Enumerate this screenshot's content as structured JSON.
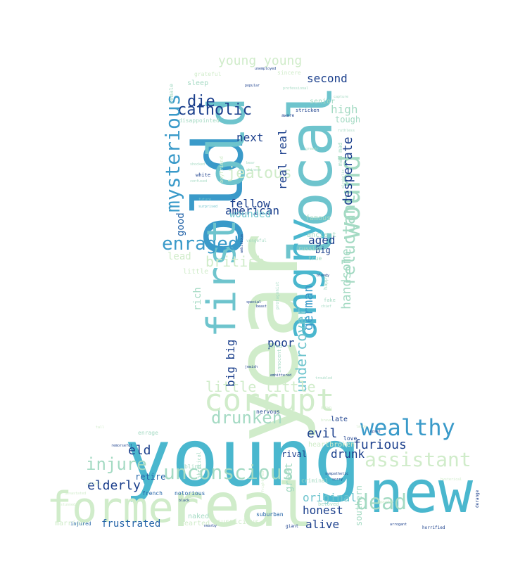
{
  "palette": {
    "background": "#ffffff",
    "pale_green": "#d0ecca",
    "light_aqua": "#a4dac3",
    "teal": "#6ec4cd",
    "medium_blue": "#3a9ac9",
    "deep_blue": "#2464a8",
    "navy": "#1b3f8c"
  },
  "wordcloud": {
    "shape": "head-and-shoulders silhouette",
    "words": [
      {
        "text": "young",
        "weight": 100,
        "color": "#4ab7ce",
        "vertical": false
      },
      {
        "text": "year",
        "weight": 96,
        "color": "#d0ecca",
        "vertical": true
      },
      {
        "text": "old",
        "weight": 90,
        "color": "#3a9ac9",
        "vertical": true
      },
      {
        "text": "local",
        "weight": 82,
        "color": "#6ec4cd",
        "vertical": true
      },
      {
        "text": "new",
        "weight": 80,
        "color": "#4ab7ce",
        "vertical": false
      },
      {
        "text": "real",
        "weight": 76,
        "color": "#d0ecca",
        "vertical": false
      },
      {
        "text": "old",
        "weight": 70,
        "color": "#6ec4cd",
        "vertical": true
      },
      {
        "text": "former",
        "weight": 62,
        "color": "#d0ecca",
        "vertical": false
      },
      {
        "text": "angry",
        "weight": 58,
        "color": "#4ab7ce",
        "vertical": true
      },
      {
        "text": "first",
        "weight": 52,
        "color": "#6ec4cd",
        "vertical": true
      },
      {
        "text": "corrupt",
        "weight": 48,
        "color": "#d0ecca",
        "vertical": false
      },
      {
        "text": "wound",
        "weight": 40,
        "color": "#a4dac3",
        "vertical": true
      },
      {
        "text": "wealthy",
        "weight": 38,
        "color": "#3a9ac9",
        "vertical": false
      },
      {
        "text": "unconscious",
        "weight": 34,
        "color": "#a4dac3",
        "vertical": false
      },
      {
        "text": "dead",
        "weight": 34,
        "color": "#a4dac3",
        "vertical": false
      },
      {
        "text": "assistant",
        "weight": 34,
        "color": "#d0ecca",
        "vertical": false
      },
      {
        "text": "catholic",
        "weight": 32,
        "color": "#1b3f8c",
        "vertical": false
      },
      {
        "text": "mysterious",
        "weight": 32,
        "color": "#3a9ac9",
        "vertical": true
      },
      {
        "text": "enraged",
        "weight": 32,
        "color": "#3a9ac9",
        "vertical": false
      },
      {
        "text": "drunken",
        "weight": 30,
        "color": "#a4dac3",
        "vertical": false
      },
      {
        "text": "injure",
        "weight": 30,
        "color": "#a4dac3",
        "vertical": false
      },
      {
        "text": "die",
        "weight": 30,
        "color": "#1b3f8c",
        "vertical": false
      },
      {
        "text": "jealous",
        "weight": 28,
        "color": "#d0ecca",
        "vertical": false
      },
      {
        "text": "reluctant",
        "weight": 28,
        "color": "#a4dac3",
        "vertical": true
      },
      {
        "text": "undercover",
        "weight": 26,
        "color": "#6ec4cd",
        "vertical": true
      },
      {
        "text": "german",
        "weight": 24,
        "color": "#3a9ac9",
        "vertical": true
      },
      {
        "text": "desperate",
        "weight": 24,
        "color": "#1b3f8c",
        "vertical": true
      },
      {
        "text": "handsome",
        "weight": 24,
        "color": "#a4dac3",
        "vertical": true
      },
      {
        "text": "british",
        "weight": 24,
        "color": "#d0ecca",
        "vertical": false
      },
      {
        "text": "furious",
        "weight": 24,
        "color": "#1b3f8c",
        "vertical": false
      },
      {
        "text": "little little",
        "weight": 22,
        "color": "#d0ecca",
        "vertical": false
      },
      {
        "text": "young young",
        "weight": 20,
        "color": "#d0ecca",
        "vertical": false
      },
      {
        "text": "elderly",
        "weight": 22,
        "color": "#1b3f8c",
        "vertical": false
      },
      {
        "text": "evil",
        "weight": 22,
        "color": "#1b3f8c",
        "vertical": false
      },
      {
        "text": "eld",
        "weight": 22,
        "color": "#1b3f8c",
        "vertical": false
      },
      {
        "text": "second",
        "weight": 22,
        "color": "#1b3f8c",
        "vertical": false
      },
      {
        "text": "fellow",
        "weight": 20,
        "color": "#1b3f8c",
        "vertical": false
      },
      {
        "text": "american",
        "weight": 20,
        "color": "#1b3f8c",
        "vertical": false
      },
      {
        "text": "aged",
        "weight": 20,
        "color": "#1b3f8c",
        "vertical": false
      },
      {
        "text": "poor",
        "weight": 20,
        "color": "#1b3f8c",
        "vertical": false
      },
      {
        "text": "next",
        "weight": 20,
        "color": "#1b3f8c",
        "vertical": false
      },
      {
        "text": "real real",
        "weight": 20,
        "color": "#1b3f8c",
        "vertical": true
      },
      {
        "text": "big big",
        "weight": 20,
        "color": "#1b3f8c",
        "vertical": true
      },
      {
        "text": "original",
        "weight": 20,
        "color": "#6ec4cd",
        "vertical": false
      },
      {
        "text": "honest",
        "weight": 20,
        "color": "#1b3f8c",
        "vertical": false
      },
      {
        "text": "alive",
        "weight": 20,
        "color": "#1b3f8c",
        "vertical": false
      },
      {
        "text": "drunk",
        "weight": 20,
        "color": "#1b3f8c",
        "vertical": false
      },
      {
        "text": "frustrated",
        "weight": 18,
        "color": "#2464a8",
        "vertical": false
      },
      {
        "text": "high",
        "weight": 20,
        "color": "#a4dac3",
        "vertical": false
      },
      {
        "text": "wounded",
        "weight": 18,
        "color": "#6ec4cd",
        "vertical": false
      },
      {
        "text": "good",
        "weight": 18,
        "color": "#2464a8",
        "vertical": true
      },
      {
        "text": "lead",
        "weight": 18,
        "color": "#d0ecca",
        "vertical": false
      },
      {
        "text": "rich",
        "weight": 18,
        "color": "#a4dac3",
        "vertical": true
      },
      {
        "text": "tough",
        "weight": 16,
        "color": "#a4dac3",
        "vertical": false
      },
      {
        "text": "senior",
        "weight": 14,
        "color": "#a4dac3",
        "vertical": false
      },
      {
        "text": "sleep",
        "weight": 14,
        "color": "#a4dac3",
        "vertical": false
      },
      {
        "text": "southern",
        "weight": 16,
        "color": "#a4dac3",
        "vertical": true
      },
      {
        "text": "famous",
        "weight": 14,
        "color": "#a4dac3",
        "vertical": false
      },
      {
        "text": "big",
        "weight": 16,
        "color": "#1b3f8c",
        "vertical": false
      },
      {
        "text": "ancient",
        "weight": 14,
        "color": "#a4dac3",
        "vertical": false
      },
      {
        "text": "late",
        "weight": 14,
        "color": "#1b3f8c",
        "vertical": false
      },
      {
        "text": "great",
        "weight": 16,
        "color": "#a4dac3",
        "vertical": true
      },
      {
        "text": "rival",
        "weight": 14,
        "color": "#1b3f8c",
        "vertical": false
      },
      {
        "text": "retire",
        "weight": 14,
        "color": "#2464a8",
        "vertical": false
      },
      {
        "text": "naked",
        "weight": 14,
        "color": "#a4dac3",
        "vertical": false
      },
      {
        "text": "suspicious",
        "weight": 14,
        "color": "#d0ecca",
        "vertical": false
      },
      {
        "text": "hearted",
        "weight": 14,
        "color": "#d0ecca",
        "vertical": false
      },
      {
        "text": "heartbroken",
        "weight": 14,
        "color": "#d0ecca",
        "vertical": false
      },
      {
        "text": "married",
        "weight": 14,
        "color": "#d0ecca",
        "vertical": false
      },
      {
        "text": "little",
        "weight": 14,
        "color": "#d0ecca",
        "vertical": false
      },
      {
        "text": "female",
        "weight": 12,
        "color": "#a4dac3",
        "vertical": true
      },
      {
        "text": "mad mad",
        "weight": 12,
        "color": "#a4dac3",
        "vertical": true
      },
      {
        "text": "disappointed",
        "weight": 10,
        "color": "#a4dac3",
        "vertical": false
      },
      {
        "text": "sincere",
        "weight": 10,
        "color": "#d0ecca",
        "vertical": false
      },
      {
        "text": "grateful",
        "weight": 10,
        "color": "#d0ecca",
        "vertical": false
      },
      {
        "text": "enrage",
        "weight": 10,
        "color": "#a4dac3",
        "vertical": false
      },
      {
        "text": "notorious",
        "weight": 10,
        "color": "#2464a8",
        "vertical": false
      },
      {
        "text": "french",
        "weight": 10,
        "color": "#2464a8",
        "vertical": false
      },
      {
        "text": "blind",
        "weight": 10,
        "color": "#a4dac3",
        "vertical": false
      },
      {
        "text": "criminal",
        "weight": 10,
        "color": "#a4dac3",
        "vertical": false
      },
      {
        "text": "suburban",
        "weight": 10,
        "color": "#2464a8",
        "vertical": false
      },
      {
        "text": "love",
        "weight": 10,
        "color": "#1b3f8c",
        "vertical": false
      },
      {
        "text": "nervous",
        "weight": 10,
        "color": "#1b3f8c",
        "vertical": false
      },
      {
        "text": "russian",
        "weight": 10,
        "color": "#a4dac3",
        "vertical": false
      },
      {
        "text": "vengeful",
        "weight": 8,
        "color": "#a4dac3",
        "vertical": false
      },
      {
        "text": "true",
        "weight": 10,
        "color": "#a4dac3",
        "vertical": false
      },
      {
        "text": "white",
        "weight": 9,
        "color": "#1b3f8c",
        "vertical": false
      },
      {
        "text": "injured",
        "weight": 9,
        "color": "#2464a8",
        "vertical": false
      },
      {
        "text": "beloved",
        "weight": 9,
        "color": "#a4dac3",
        "vertical": false
      },
      {
        "text": "fake",
        "weight": 9,
        "color": "#a4dac3",
        "vertical": false
      },
      {
        "text": "happy",
        "weight": 9,
        "color": "#a4dac3",
        "vertical": true
      },
      {
        "text": "tired",
        "weight": 9,
        "color": "#a4dac3",
        "vertical": false
      },
      {
        "text": "innocent",
        "weight": 9,
        "color": "#a4dac3",
        "vertical": true
      },
      {
        "text": "protagonist",
        "weight": 8,
        "color": "#a4dac3",
        "vertical": true
      },
      {
        "text": "stricken",
        "weight": 8,
        "color": "#1b3f8c",
        "vertical": false
      },
      {
        "text": "aware",
        "weight": 8,
        "color": "#1b3f8c",
        "vertical": false
      },
      {
        "text": "boyfriend",
        "weight": 9,
        "color": "#d0ecca",
        "vertical": true
      },
      {
        "text": "skeptical",
        "weight": 8,
        "color": "#a4dac3",
        "vertical": true
      },
      {
        "text": "giant",
        "weight": 8,
        "color": "#1b3f8c",
        "vertical": false
      },
      {
        "text": "unemployed",
        "weight": 7,
        "color": "#1b3f8c",
        "vertical": false
      },
      {
        "text": "popular",
        "weight": 7,
        "color": "#1b3f8c",
        "vertical": false
      },
      {
        "text": "professional",
        "weight": 7,
        "color": "#a4dac3",
        "vertical": false
      },
      {
        "text": "capture",
        "weight": 7,
        "color": "#a4dac3",
        "vertical": false
      },
      {
        "text": "ruthless",
        "weight": 7,
        "color": "#a4dac3",
        "vertical": false
      },
      {
        "text": "greedy",
        "weight": 7,
        "color": "#a4dac3",
        "vertical": false
      },
      {
        "text": "shocked",
        "weight": 7,
        "color": "#a4dac3",
        "vertical": false
      },
      {
        "text": "confused",
        "weight": 7,
        "color": "#a4dac3",
        "vertical": false
      },
      {
        "text": "future",
        "weight": 7,
        "color": "#6ec4cd",
        "vertical": false
      },
      {
        "text": "surprised",
        "weight": 7,
        "color": "#6ec4cd",
        "vertical": false
      },
      {
        "text": "bear",
        "weight": 7,
        "color": "#a4dac3",
        "vertical": false
      },
      {
        "text": "chinese",
        "weight": 7,
        "color": "#a4dac3",
        "vertical": false
      },
      {
        "text": "alcoholic",
        "weight": 6,
        "color": "#a4dac3",
        "vertical": true
      },
      {
        "text": "ambitious",
        "weight": 7,
        "color": "#1b3f8c",
        "vertical": true
      },
      {
        "text": "bloody",
        "weight": 7,
        "color": "#1b3f8c",
        "vertical": false
      },
      {
        "text": "special",
        "weight": 7,
        "color": "#1b3f8c",
        "vertical": false
      },
      {
        "text": "beast",
        "weight": 7,
        "color": "#1b3f8c",
        "vertical": false
      },
      {
        "text": "chief",
        "weight": 7,
        "color": "#a4dac3",
        "vertical": false
      },
      {
        "text": "jewish",
        "weight": 6,
        "color": "#1b3f8c",
        "vertical": false
      },
      {
        "text": "embittered",
        "weight": 6,
        "color": "#1b3f8c",
        "vertical": false
      },
      {
        "text": "troubled",
        "weight": 6,
        "color": "#a4dac3",
        "vertical": false
      },
      {
        "text": "remorseful",
        "weight": 7,
        "color": "#1b3f8c",
        "vertical": false
      },
      {
        "text": "devastated",
        "weight": 7,
        "color": "#d0ecca",
        "vertical": false
      },
      {
        "text": "stunned",
        "weight": 6,
        "color": "#d0ecca",
        "vertical": false
      },
      {
        "text": "sympathetic",
        "weight": 7,
        "color": "#1b3f8c",
        "vertical": false
      },
      {
        "text": "sorry",
        "weight": 6,
        "color": "#1b3f8c",
        "vertical": false
      },
      {
        "text": "arrogant",
        "weight": 7,
        "color": "#1b3f8c",
        "vertical": false
      },
      {
        "text": "horrified",
        "weight": 8,
        "color": "#1b3f8c",
        "vertical": false
      },
      {
        "text": "derange",
        "weight": 8,
        "color": "#1b3f8c",
        "vertical": true
      },
      {
        "text": "upset",
        "weight": 6,
        "color": "#1b3f8c",
        "vertical": false
      },
      {
        "text": "black",
        "weight": 6,
        "color": "#1b3f8c",
        "vertical": false
      },
      {
        "text": "certain",
        "weight": 7,
        "color": "#d0ecca",
        "vertical": false
      },
      {
        "text": "frightened",
        "weight": 7,
        "color": "#d0ecca",
        "vertical": true
      },
      {
        "text": "reporter",
        "weight": 6,
        "color": "#d0ecca",
        "vertical": false
      },
      {
        "text": "hysterical",
        "weight": 6,
        "color": "#d0ecca",
        "vertical": false
      },
      {
        "text": "nearby",
        "weight": 6,
        "color": "#1b3f8c",
        "vertical": false
      },
      {
        "text": "brave",
        "weight": 6,
        "color": "#d0ecca",
        "vertical": false
      },
      {
        "text": "grown",
        "weight": 6,
        "color": "#d0ecca",
        "vertical": false
      },
      {
        "text": "large",
        "weight": 6,
        "color": "#d0ecca",
        "vertical": false
      },
      {
        "text": "tall",
        "weight": 6,
        "color": "#d0ecca",
        "vertical": false
      }
    ]
  }
}
